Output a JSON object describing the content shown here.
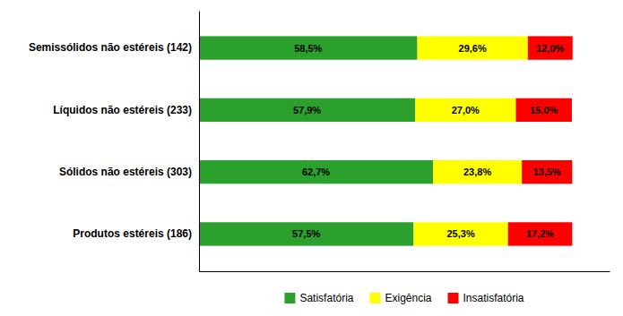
{
  "chart_data": {
    "type": "bar",
    "orientation": "horizontal",
    "stacked": true,
    "categories": [
      "Semissólidos não estéreis (142)",
      "Líquidos não estéreis (233)",
      "Sólidos não estéreis (303)",
      "Produtos estéreis (186)"
    ],
    "series": [
      {
        "name": "Satisfatória",
        "color": "#2CA02C",
        "values": [
          58.5,
          57.9,
          62.7,
          57.5
        ],
        "value_labels": [
          "58,5%",
          "57,9%",
          "62,7%",
          "57,5%"
        ]
      },
      {
        "name": "Exigência",
        "color": "#FFFF00",
        "values": [
          29.6,
          27.0,
          23.8,
          25.3
        ],
        "value_labels": [
          "29,6%",
          "27,0%",
          "23,8%",
          "25,3%"
        ]
      },
      {
        "name": "Insatisfatória",
        "color": "#FF0000",
        "values": [
          12.0,
          15.0,
          13.5,
          17.2
        ],
        "value_labels": [
          "12,0%",
          "15,0%",
          "13,5%",
          "17,2%"
        ]
      }
    ],
    "xlim": [
      0,
      110
    ],
    "tick_labels": "y",
    "data_labels": true,
    "legend": "bottom"
  }
}
